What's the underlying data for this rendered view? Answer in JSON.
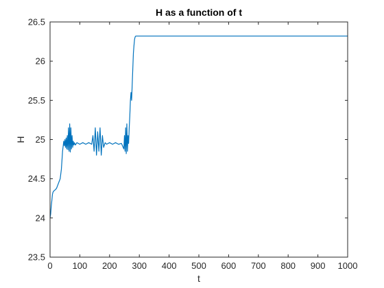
{
  "chart_data": {
    "type": "line",
    "title": "H as a function of t",
    "xlabel": "t",
    "ylabel": "H",
    "xlim": [
      0,
      1000
    ],
    "ylim": [
      23.5,
      26.5
    ],
    "x_ticks": [
      0,
      100,
      200,
      300,
      400,
      500,
      600,
      700,
      800,
      900,
      1000
    ],
    "x_tick_labels": [
      "0",
      "100",
      "200",
      "300",
      "400",
      "500",
      "600",
      "700",
      "800",
      "900",
      "1000"
    ],
    "y_ticks": [
      23.5,
      24,
      24.5,
      25,
      25.5,
      26,
      26.5
    ],
    "y_tick_labels": [
      "23.5",
      "24",
      "24.5",
      "25",
      "25.5",
      "26",
      "26.5"
    ],
    "grid": false,
    "box": true,
    "series": [
      {
        "color": "#0072BD",
        "x": [
          0,
          2,
          4,
          6,
          8,
          10,
          14,
          18,
          22,
          26,
          30,
          34,
          38,
          42,
          46,
          48,
          50,
          52,
          54,
          56,
          58,
          60,
          62,
          64,
          66,
          68,
          70,
          72,
          74,
          76,
          78,
          80,
          82,
          85,
          90,
          100,
          110,
          120,
          130,
          140,
          144,
          148,
          152,
          156,
          160,
          164,
          168,
          172,
          176,
          180,
          185,
          190,
          200,
          210,
          220,
          230,
          240,
          248,
          250,
          252,
          254,
          256,
          258,
          260,
          262,
          264,
          266,
          268,
          270,
          272,
          274,
          276,
          278,
          280,
          282,
          284,
          286,
          288,
          290,
          294,
          300,
          320,
          400,
          500,
          600,
          700,
          800,
          900,
          1000
        ],
        "y": [
          24.0,
          24.05,
          24.15,
          24.22,
          24.3,
          24.33,
          24.35,
          24.36,
          24.38,
          24.42,
          24.46,
          24.5,
          24.62,
          24.85,
          24.98,
          24.92,
          25.0,
          24.9,
          25.02,
          24.88,
          25.05,
          24.87,
          25.15,
          24.85,
          25.2,
          24.84,
          25.15,
          24.88,
          25.05,
          24.9,
          24.98,
          24.93,
          24.96,
          24.93,
          24.96,
          24.94,
          24.96,
          24.94,
          24.96,
          24.94,
          25.05,
          24.85,
          25.15,
          24.8,
          25.1,
          24.85,
          25.15,
          24.8,
          25.05,
          24.9,
          24.96,
          24.94,
          24.96,
          24.94,
          24.96,
          24.94,
          24.95,
          24.88,
          25.05,
          24.85,
          25.15,
          24.82,
          25.2,
          24.85,
          25.05,
          24.95,
          25.15,
          25.3,
          25.5,
          25.6,
          25.5,
          25.7,
          25.9,
          26.1,
          26.2,
          26.28,
          26.31,
          26.32,
          26.32,
          26.32,
          26.32,
          26.32,
          26.32,
          26.32,
          26.32,
          26.32,
          26.32,
          26.32,
          26.32
        ]
      }
    ]
  }
}
